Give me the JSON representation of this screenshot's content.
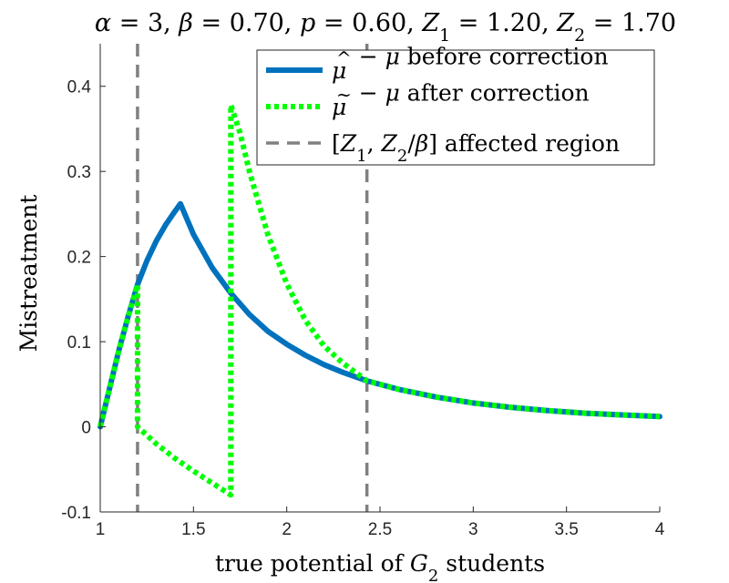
{
  "chart_data": {
    "type": "line",
    "title_parts": [
      {
        "t": "α",
        "italic": true
      },
      {
        "t": " = 3, ",
        "italic": false
      },
      {
        "t": "β",
        "italic": true
      },
      {
        "t": " = 0.70, ",
        "italic": false
      },
      {
        "t": "p",
        "italic": true
      },
      {
        "t": " = 0.60, ",
        "italic": false
      },
      {
        "t": "Z",
        "italic": true
      },
      {
        "t": "1",
        "sub": true
      },
      {
        "t": " = 1.20, ",
        "italic": false
      },
      {
        "t": "Z",
        "italic": true
      },
      {
        "t": "2",
        "sub": true
      },
      {
        "t": " = 1.70",
        "italic": false
      }
    ],
    "ylabel": "Mistreatment",
    "xlabel_parts": [
      {
        "t": "true potential of ",
        "italic": false
      },
      {
        "t": "G",
        "italic": true
      },
      {
        "t": "2",
        "sub": true
      },
      {
        "t": " students",
        "italic": false
      }
    ],
    "xlim": [
      1,
      4
    ],
    "ylim": [
      -0.1,
      0.45
    ],
    "xticks": [
      1,
      1.5,
      2,
      2.5,
      3,
      3.5,
      4
    ],
    "xtick_labels": [
      "1",
      "1.5",
      "2",
      "2.5",
      "3",
      "3.5",
      "4"
    ],
    "yticks": [
      -0.1,
      0,
      0.1,
      0.2,
      0.3,
      0.4
    ],
    "ytick_labels": [
      "-0.1",
      "0",
      "0.1",
      "0.2",
      "0.3",
      "0.4"
    ],
    "series": [
      {
        "name": "before",
        "legend": "μ̂ − μ before correction",
        "color": "#0072BD",
        "style": "solid",
        "x": [
          1.0,
          1.05,
          1.1,
          1.15,
          1.2,
          1.25,
          1.3,
          1.35,
          1.4,
          1.43,
          1.5,
          1.6,
          1.7,
          1.8,
          1.9,
          2.0,
          2.1,
          2.2,
          2.3,
          2.43,
          2.6,
          2.8,
          3.0,
          3.2,
          3.4,
          3.6,
          3.8,
          4.0
        ],
        "y": [
          0.0,
          0.045,
          0.09,
          0.13,
          0.167,
          0.195,
          0.218,
          0.237,
          0.253,
          0.262,
          0.226,
          0.187,
          0.157,
          0.132,
          0.112,
          0.097,
          0.084,
          0.073,
          0.064,
          0.054,
          0.044,
          0.035,
          0.028,
          0.023,
          0.019,
          0.016,
          0.014,
          0.012
        ]
      },
      {
        "name": "after",
        "legend": "μ̃ − μ after correction",
        "color": "#00FF00",
        "style": "dotted",
        "x": [
          1.0,
          1.05,
          1.1,
          1.15,
          1.2,
          1.2,
          1.3,
          1.4,
          1.5,
          1.6,
          1.7,
          1.7,
          1.75,
          1.8,
          1.9,
          2.0,
          2.1,
          2.2,
          2.3,
          2.43,
          2.6,
          2.8,
          3.0,
          3.2,
          3.4,
          3.6,
          3.8,
          4.0
        ],
        "y": [
          0.0,
          0.045,
          0.09,
          0.13,
          0.167,
          0.0,
          -0.02,
          -0.037,
          -0.052,
          -0.066,
          -0.08,
          0.378,
          0.345,
          0.3,
          0.225,
          0.168,
          0.125,
          0.095,
          0.075,
          0.054,
          0.044,
          0.035,
          0.028,
          0.023,
          0.019,
          0.016,
          0.014,
          0.012
        ]
      }
    ],
    "vlines": {
      "legend": "[Z1, Z2/β] affected region",
      "color": "#808080",
      "style": "dashed",
      "x": [
        1.2,
        2.43
      ]
    },
    "legend_entries": [
      {
        "series": "before",
        "parts": [
          {
            "t": "μ",
            "italic": true,
            "accent": "^"
          },
          {
            "t": " − ",
            "italic": false
          },
          {
            "t": "μ",
            "italic": true
          },
          {
            "t": " before correction",
            "italic": false
          }
        ]
      },
      {
        "series": "after",
        "parts": [
          {
            "t": "μ",
            "italic": true,
            "accent": "~"
          },
          {
            "t": " − ",
            "italic": false
          },
          {
            "t": "μ",
            "italic": true
          },
          {
            "t": " after correction",
            "italic": false
          }
        ]
      },
      {
        "series": "vlines",
        "parts": [
          {
            "t": "[",
            "italic": false
          },
          {
            "t": "Z",
            "italic": true
          },
          {
            "t": "1",
            "sub": true
          },
          {
            "t": ", ",
            "italic": false
          },
          {
            "t": "Z",
            "italic": true
          },
          {
            "t": "2",
            "sub": true
          },
          {
            "t": "/",
            "italic": false
          },
          {
            "t": "β",
            "italic": true
          },
          {
            "t": "] affected region",
            "italic": false
          }
        ]
      }
    ],
    "legend_position": "top-right"
  }
}
